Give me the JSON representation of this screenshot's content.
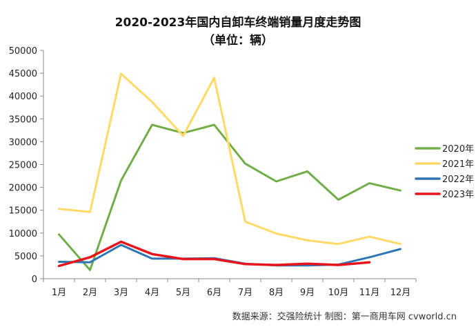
{
  "chart_data": {
    "type": "line",
    "title": "2020-2023年国内自卸车终端销量月度走势图",
    "subtitle": "（单位：辆）",
    "categories": [
      "1月",
      "2月",
      "3月",
      "4月",
      "5月",
      "6月",
      "7月",
      "8月",
      "9月",
      "10月",
      "11月",
      "12月"
    ],
    "ylim": [
      0,
      50000
    ],
    "yticks": [
      0,
      5000,
      10000,
      15000,
      20000,
      25000,
      30000,
      35000,
      40000,
      45000,
      50000
    ],
    "grid": false,
    "legend_position": "right",
    "series": [
      {
        "name": "2020年",
        "color": "#70AD47",
        "values": [
          9700,
          1900,
          21500,
          33700,
          31900,
          33700,
          25200,
          21300,
          23500,
          17300,
          20900,
          19300
        ]
      },
      {
        "name": "2021年",
        "color": "#FFD966",
        "values": [
          15300,
          14600,
          44900,
          38700,
          31300,
          44000,
          12500,
          9900,
          8400,
          7600,
          9200,
          7600
        ]
      },
      {
        "name": "2022年",
        "color": "#2E75B6",
        "values": [
          3700,
          3600,
          7400,
          4400,
          4400,
          4500,
          3300,
          2900,
          2900,
          3100,
          4700,
          6500
        ]
      },
      {
        "name": "2023年",
        "color": "#E8141B",
        "values": [
          2800,
          4700,
          8100,
          5400,
          4300,
          4300,
          3200,
          3000,
          3300,
          3000,
          3600,
          null
        ]
      }
    ]
  },
  "footer": {
    "source": "数据来源：交强险统计   制图：第一商用车网 cvworld.cn"
  }
}
